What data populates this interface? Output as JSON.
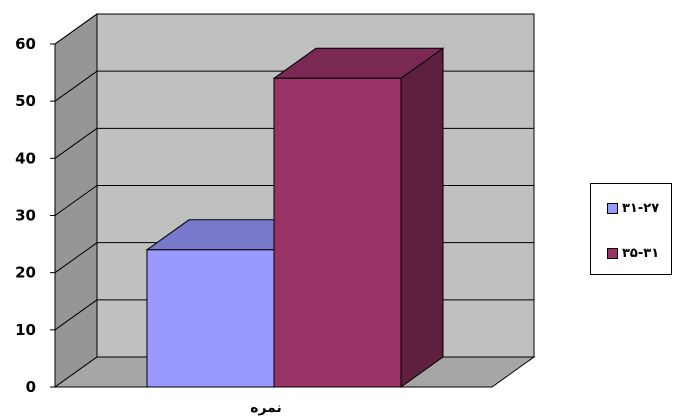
{
  "chart_data": {
    "type": "bar",
    "categories": [
      "نمره"
    ],
    "series": [
      {
        "name": "۳۱-۲۷",
        "values": [
          24
        ],
        "color": "#9999ff"
      },
      {
        "name": "۳۵-۳۱",
        "values": [
          54
        ],
        "color": "#993366"
      }
    ],
    "ylim": [
      0,
      60
    ],
    "yticks": [
      0,
      10,
      20,
      30,
      40,
      50,
      60
    ],
    "grid": true,
    "legend_position": "right",
    "style": "3d-column",
    "colors": {
      "walls": "#c0c0c0",
      "floor": "#a6a6a6",
      "side_wall": "#969696"
    }
  }
}
